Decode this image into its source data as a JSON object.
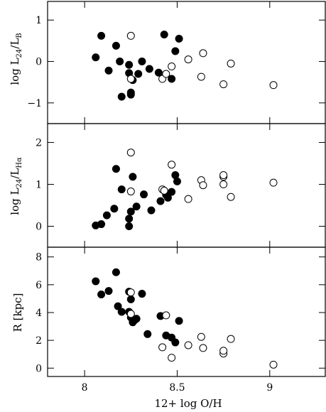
{
  "chart_data": [
    {
      "type": "scatter",
      "title": "",
      "xlabel": "12+ log O/H",
      "ylabel_main": "log L",
      "ylabel_sub1": "24",
      "ylabel_mid": "/L",
      "ylabel_sub2": "B",
      "xlim": [
        7.8,
        9.3
      ],
      "ylim": [
        -1.5,
        1.45
      ],
      "xticks": [
        8,
        8.5,
        9
      ],
      "xtick_labels": [
        "",
        "",
        ""
      ],
      "yticks": [
        -1,
        0,
        1
      ],
      "ytick_labels": [
        "−1",
        "0",
        "1"
      ],
      "series": [
        {
          "filled": true,
          "x": [
            8.06,
            8.09,
            8.13,
            8.17,
            8.19,
            8.2,
            8.24,
            8.24,
            8.25,
            8.25,
            8.26,
            8.29,
            8.31,
            8.35,
            8.4,
            8.43,
            8.47,
            8.49,
            8.51
          ],
          "y": [
            0.1,
            0.62,
            -0.22,
            0.38,
            0.0,
            -0.85,
            -0.08,
            -0.28,
            -0.75,
            -0.8,
            -0.45,
            -0.3,
            0.0,
            -0.18,
            -0.27,
            0.65,
            -0.42,
            0.25,
            0.55
          ]
        },
        {
          "filled": false,
          "x": [
            8.25,
            8.25,
            8.42,
            8.44,
            8.47,
            8.56,
            8.63,
            8.64,
            8.75,
            8.79,
            9.02
          ],
          "y": [
            0.62,
            -0.42,
            -0.42,
            -0.3,
            -0.12,
            0.05,
            -0.37,
            0.2,
            -0.55,
            -0.05,
            -0.57
          ]
        }
      ]
    },
    {
      "type": "scatter",
      "title": "",
      "xlabel": "12+ log O/H",
      "ylabel_main": "log L",
      "ylabel_sub1": "24",
      "ylabel_mid": "/L",
      "ylabel_sub2": "Hα",
      "xlim": [
        7.8,
        9.3
      ],
      "ylim": [
        -0.5,
        2.45
      ],
      "xticks": [
        8,
        8.5,
        9
      ],
      "xtick_labels": [
        "",
        "",
        ""
      ],
      "yticks": [
        0,
        1,
        2
      ],
      "ytick_labels": [
        "0",
        "1",
        "2"
      ],
      "series": [
        {
          "filled": true,
          "x": [
            8.06,
            8.09,
            8.12,
            8.16,
            8.17,
            8.2,
            8.24,
            8.24,
            8.25,
            8.26,
            8.28,
            8.32,
            8.36,
            8.41,
            8.44,
            8.45,
            8.47,
            8.49,
            8.5
          ],
          "y": [
            0.02,
            0.05,
            0.26,
            0.42,
            1.37,
            0.88,
            0.0,
            0.18,
            0.35,
            1.18,
            0.47,
            0.76,
            0.38,
            0.6,
            0.75,
            0.68,
            0.82,
            1.22,
            1.07
          ]
        },
        {
          "filled": false,
          "x": [
            8.25,
            8.25,
            8.42,
            8.43,
            8.47,
            8.56,
            8.63,
            8.64,
            8.75,
            8.75,
            8.75,
            8.79,
            9.02
          ],
          "y": [
            1.76,
            0.83,
            0.88,
            0.85,
            1.47,
            0.65,
            1.1,
            0.98,
            1.18,
            1.22,
            1.0,
            0.7,
            1.04
          ]
        }
      ]
    },
    {
      "type": "scatter",
      "title": "",
      "xlabel": "12+ log O/H",
      "ylabel_main": "R  [kpc]",
      "xlim": [
        7.8,
        9.3
      ],
      "ylim": [
        -0.6,
        8.7
      ],
      "xticks": [
        8,
        8.5,
        9
      ],
      "xtick_labels": [
        "8",
        "8.5",
        "9"
      ],
      "yticks": [
        0,
        2,
        4,
        6,
        8
      ],
      "ytick_labels": [
        "0",
        "2",
        "4",
        "6",
        "8"
      ],
      "series": [
        {
          "filled": true,
          "x": [
            8.06,
            8.09,
            8.13,
            8.17,
            8.18,
            8.2,
            8.24,
            8.24,
            8.25,
            8.25,
            8.26,
            8.27,
            8.28,
            8.31,
            8.34,
            8.41,
            8.44,
            8.47,
            8.49,
            8.51
          ],
          "y": [
            6.25,
            5.3,
            5.55,
            6.9,
            4.45,
            4.05,
            5.5,
            4.05,
            3.65,
            4.95,
            3.3,
            3.45,
            3.55,
            5.35,
            2.45,
            3.75,
            2.35,
            2.2,
            1.85,
            3.4
          ]
        },
        {
          "filled": false,
          "x": [
            8.25,
            8.25,
            8.42,
            8.44,
            8.47,
            8.56,
            8.63,
            8.64,
            8.75,
            8.75,
            8.79,
            9.02
          ],
          "y": [
            5.45,
            3.9,
            1.5,
            3.8,
            0.75,
            1.65,
            2.25,
            1.45,
            1.05,
            1.25,
            2.1,
            0.25
          ]
        }
      ]
    }
  ]
}
